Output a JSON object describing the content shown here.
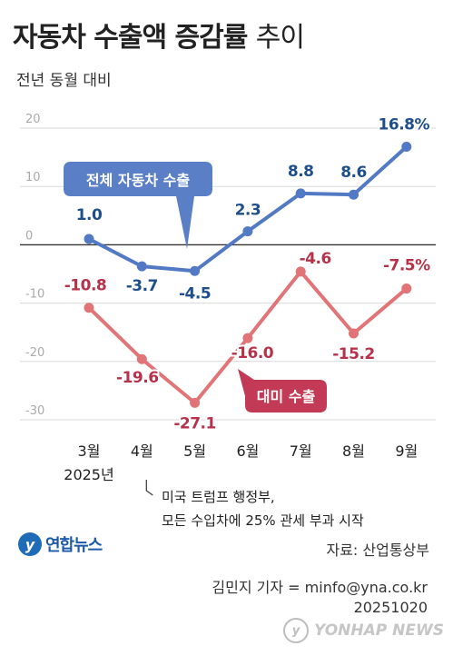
{
  "header": {
    "title_bold": "자동차 수출액 증감률",
    "title_light": "추이",
    "subtitle": "전년 동월 대비"
  },
  "chart_data": {
    "type": "line",
    "categories": [
      "3월",
      "4월",
      "5월",
      "6월",
      "7월",
      "8월",
      "9월"
    ],
    "year_label": "2025년",
    "ylim": [
      -30,
      20
    ],
    "yticks": [
      20,
      10,
      0,
      -10,
      -20,
      -30
    ],
    "grid": true,
    "series": [
      {
        "name": "전체 자동차 수출",
        "color": "#5279c4",
        "values": [
          1.0,
          -3.7,
          -4.5,
          2.3,
          8.8,
          8.6,
          16.8
        ],
        "labels": [
          "1.0",
          "-3.7",
          "-4.5",
          "2.3",
          "8.8",
          "8.6",
          "16.8%"
        ]
      },
      {
        "name": "대미 수출",
        "color": "#e07476",
        "values": [
          -10.8,
          -19.6,
          -27.1,
          -16.0,
          -4.6,
          -15.2,
          -7.5
        ],
        "labels": [
          "-10.8",
          "-19.6",
          "-27.1",
          "-16.0",
          "-4.6",
          "-15.2",
          "-7.5%"
        ]
      }
    ]
  },
  "annotation": {
    "line1": "미국 트럼프 행정부,",
    "line2": "모든 수입차에 25% 관세 부과 시작"
  },
  "footer": {
    "source": "자료: 산업통상부",
    "logo_text": "연합뉴스",
    "credit": "김민지 기자 = minfo@yna.co.kr",
    "date": "20251020",
    "watermark": "YONHAP NEWS"
  },
  "colors": {
    "blue_label": "#1e4f8a",
    "red_label": "#b7314a",
    "blue_callout": "#5a7fc6",
    "red_callout": "#c23a55"
  }
}
